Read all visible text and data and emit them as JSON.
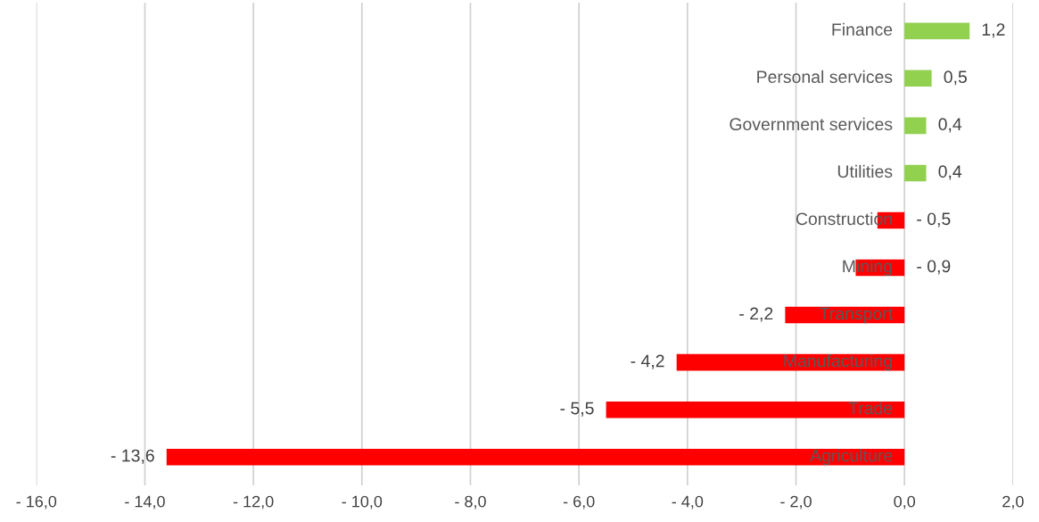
{
  "chart_data": {
    "type": "bar",
    "orientation": "horizontal",
    "categories": [
      "Finance",
      "Personal services",
      "Government services",
      "Utilities",
      "Construction",
      "Mining",
      "Transport",
      "Manufacturing",
      "Trade",
      "Agriculture"
    ],
    "values": [
      1.2,
      0.5,
      0.4,
      0.4,
      -0.5,
      -0.9,
      -2.2,
      -4.2,
      -5.5,
      -13.6
    ],
    "colors": [
      "#92d050",
      "#92d050",
      "#92d050",
      "#92d050",
      "#ff0000",
      "#ff0000",
      "#ff0000",
      "#ff0000",
      "#ff0000",
      "#ff0000"
    ],
    "value_labels": [
      "1,2",
      "0,5",
      "0,4",
      "0,4",
      "- 0,5",
      "- 0,9",
      "- 2,2",
      "- 4,2",
      "- 5,5",
      "- 13,6"
    ],
    "xlim": [
      -16,
      2
    ],
    "xticks": [
      {
        "value": -16,
        "label": "- 16,0"
      },
      {
        "value": -14,
        "label": "- 14,0"
      },
      {
        "value": -12,
        "label": "- 12,0"
      },
      {
        "value": -10,
        "label": "- 10,0"
      },
      {
        "value": -8,
        "label": "- 8,0"
      },
      {
        "value": -6,
        "label": "- 6,0"
      },
      {
        "value": -4,
        "label": "- 4,0"
      },
      {
        "value": -2,
        "label": "- 2,0"
      },
      {
        "value": 0,
        "label": "0,0"
      },
      {
        "value": 2,
        "label": "2,0"
      }
    ],
    "grid": "x"
  }
}
